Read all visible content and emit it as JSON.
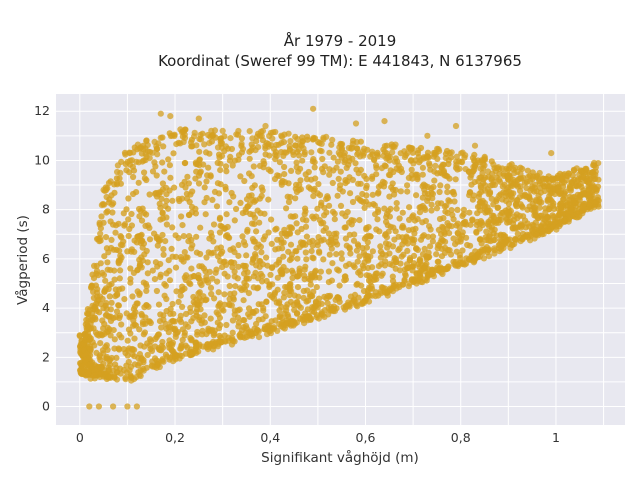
{
  "chart_data": {
    "type": "scatter",
    "title_line1": "År 1979 - 2019",
    "title_line2": "Koordinat (Sweref 99 TM): E 441843, N 6137965",
    "xlabel": "Signifikant våghöjd (m)",
    "ylabel": "Vågperiod (s)",
    "xlim": [
      -0.05,
      1.145
    ],
    "ylim": [
      -0.75,
      12.7
    ],
    "x_ticks": [
      0,
      0.2,
      0.4,
      0.6,
      0.8,
      1
    ],
    "x_tick_labels": [
      "0",
      "0,2",
      "0,4",
      "0,6",
      "0,8",
      "1"
    ],
    "y_ticks": [
      0,
      2,
      4,
      6,
      8,
      10,
      12
    ],
    "y_tick_labels": [
      "0",
      "2",
      "4",
      "6",
      "8",
      "10",
      "12"
    ],
    "grid": true,
    "legend": "none",
    "colors": {
      "marker": "#D4A020",
      "plot_bg": "#E8E8F0",
      "grid": "#FFFFFF"
    },
    "band": {
      "x_range": [
        0,
        1.09
      ],
      "lower_edge": [
        [
          0.01,
          1.3
        ],
        [
          0.1,
          1.1
        ],
        [
          0.2,
          2.0
        ],
        [
          0.4,
          3.1
        ],
        [
          0.6,
          4.3
        ],
        [
          0.8,
          5.8
        ],
        [
          1.0,
          7.3
        ],
        [
          1.08,
          8.2
        ]
      ],
      "upper_edge": [
        [
          0.01,
          3.0
        ],
        [
          0.05,
          8.8
        ],
        [
          0.1,
          10.5
        ],
        [
          0.2,
          11.3
        ],
        [
          0.4,
          11.2
        ],
        [
          0.6,
          10.8
        ],
        [
          0.8,
          10.4
        ],
        [
          1.0,
          9.4
        ],
        [
          1.09,
          10.0
        ]
      ]
    },
    "outliers": [
      [
        0.1,
        0.0
      ],
      [
        0.07,
        0.0
      ],
      [
        0.04,
        0.0
      ],
      [
        0.12,
        0.0
      ],
      [
        0.02,
        0.0
      ],
      [
        0.01,
        1.7
      ],
      [
        0.0,
        2.9
      ],
      [
        0.05,
        8.8
      ],
      [
        0.08,
        9.8
      ],
      [
        0.17,
        11.9
      ],
      [
        0.19,
        11.8
      ],
      [
        0.49,
        12.1
      ],
      [
        0.39,
        11.4
      ],
      [
        0.58,
        11.5
      ],
      [
        0.64,
        11.6
      ],
      [
        0.73,
        11.0
      ],
      [
        0.79,
        11.4
      ],
      [
        0.83,
        10.6
      ],
      [
        0.99,
        10.3
      ],
      [
        1.08,
        9.9
      ],
      [
        1.06,
        9.5
      ],
      [
        1.03,
        8.9
      ],
      [
        0.25,
        11.7
      ],
      [
        0.3,
        11.2
      ]
    ]
  }
}
